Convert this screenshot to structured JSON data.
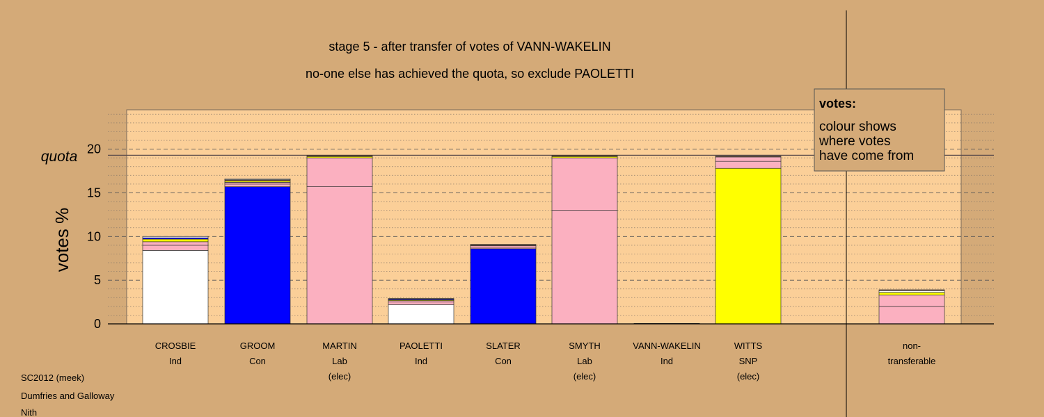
{
  "title_line1": "stage 5 - after transfer of votes of VANN-WAKELIN",
  "title_line2": "no-one else has achieved the quota, so exclude PAOLETTI",
  "footer": [
    "SC2012 (meek)",
    "Dumfries and Galloway",
    "Nith"
  ],
  "legend": {
    "title": "votes:",
    "lines": [
      "colour shows",
      "where votes",
      "have come from"
    ]
  },
  "colors": {
    "background": "#d4aa78",
    "plot_area": "#fbcf98",
    "Ind": "#ffffff",
    "Con": "#0000ff",
    "Lab": "#fbb0c0",
    "SNP": "#ffff00",
    "dark": "#6b4a3a"
  },
  "chart_data": {
    "type": "bar",
    "stacked": true,
    "ylabel": "votes %",
    "quota_label": "quota",
    "quota": 19.3,
    "ylim": [
      0,
      24.5
    ],
    "yticks": [
      0,
      5,
      10,
      15,
      20
    ],
    "grid": "dashed at major ticks, dotted at minor ticks",
    "legend_position": "top-right",
    "categories": [
      {
        "name": "CROSBIE",
        "party": "Ind",
        "status": ""
      },
      {
        "name": "GROOM",
        "party": "Con",
        "status": ""
      },
      {
        "name": "MARTIN",
        "party": "Lab",
        "status": "(elec)"
      },
      {
        "name": "PAOLETTI",
        "party": "Ind",
        "status": ""
      },
      {
        "name": "SLATER",
        "party": "Con",
        "status": ""
      },
      {
        "name": "SMYTH",
        "party": "Lab",
        "status": "(elec)"
      },
      {
        "name": "VANN-WAKELIN",
        "party": "Ind",
        "status": ""
      },
      {
        "name": "WITTS",
        "party": "SNP",
        "status": "(elec)"
      },
      {
        "name": "",
        "party": "",
        "status": ""
      },
      {
        "name": "non-",
        "party": "transferable",
        "status": ""
      }
    ],
    "bars": [
      {
        "category": "CROSBIE",
        "segments": [
          {
            "color": "Ind",
            "value": 8.4
          },
          {
            "color": "Lab",
            "value": 0.6
          },
          {
            "color": "Lab",
            "value": 0.4
          },
          {
            "color": "SNP",
            "value": 0.3
          },
          {
            "color": "Con",
            "value": 0.15
          },
          {
            "color": "Ind",
            "value": 0.15
          }
        ]
      },
      {
        "category": "GROOM",
        "segments": [
          {
            "color": "Con",
            "value": 15.7
          },
          {
            "color": "Lab",
            "value": 0.3
          },
          {
            "color": "Lab",
            "value": 0.2
          },
          {
            "color": "SNP",
            "value": 0.15
          },
          {
            "color": "dark",
            "value": 0.15
          },
          {
            "color": "Ind",
            "value": 0.1
          }
        ]
      },
      {
        "category": "MARTIN",
        "segments": [
          {
            "color": "Lab",
            "value": 15.7
          },
          {
            "color": "Lab",
            "value": 3.3
          },
          {
            "color": "SNP",
            "value": 0.15
          },
          {
            "color": "dark",
            "value": 0.15
          }
        ]
      },
      {
        "category": "PAOLETTI",
        "segments": [
          {
            "color": "Ind",
            "value": 2.2
          },
          {
            "color": "Lab",
            "value": 0.3
          },
          {
            "color": "Lab",
            "value": 0.15
          },
          {
            "color": "SNP",
            "value": 0.1
          },
          {
            "color": "Con",
            "value": 0.1
          },
          {
            "color": "Ind",
            "value": 0.05
          }
        ]
      },
      {
        "category": "SLATER",
        "segments": [
          {
            "color": "Con",
            "value": 8.6
          },
          {
            "color": "Lab",
            "value": 0.2
          },
          {
            "color": "Lab",
            "value": 0.15
          },
          {
            "color": "dark",
            "value": 0.15
          }
        ]
      },
      {
        "category": "SMYTH",
        "segments": [
          {
            "color": "Lab",
            "value": 13.0
          },
          {
            "color": "Lab",
            "value": 6.0
          },
          {
            "color": "SNP",
            "value": 0.15
          },
          {
            "color": "dark",
            "value": 0.15
          }
        ]
      },
      {
        "category": "VANN-WAKELIN",
        "segments": [
          {
            "color": "dark",
            "value": 0.05
          }
        ]
      },
      {
        "category": "WITTS",
        "segments": [
          {
            "color": "SNP",
            "value": 17.8
          },
          {
            "color": "Lab",
            "value": 0.8
          },
          {
            "color": "Lab",
            "value": 0.5
          },
          {
            "color": "dark",
            "value": 0.1
          }
        ]
      },
      {
        "category": "non-transferable",
        "segments": [
          {
            "color": "Lab",
            "value": 2.0
          },
          {
            "color": "Lab",
            "value": 1.3
          },
          {
            "color": "SNP",
            "value": 0.3
          },
          {
            "color": "Ind",
            "value": 0.2
          },
          {
            "color": "dark",
            "value": 0.1
          }
        ]
      }
    ]
  }
}
